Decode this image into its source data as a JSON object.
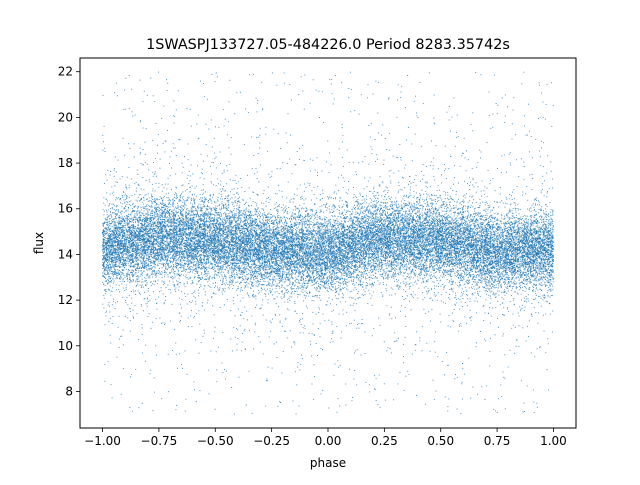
{
  "chart_data": {
    "type": "scatter",
    "title": "1SWASPJ133727.05-484226.0 Period 8283.35742s",
    "xlabel": "phase",
    "ylabel": "flux",
    "xlim": [
      -1.1,
      1.1
    ],
    "ylim": [
      6.4,
      22.6
    ],
    "x_ticks": [
      -1.0,
      -0.75,
      -0.5,
      -0.25,
      0.0,
      0.25,
      0.5,
      0.75,
      1.0
    ],
    "x_tick_labels": [
      "−1.00",
      "−0.75",
      "−0.50",
      "−0.25",
      "0.00",
      "0.25",
      "0.50",
      "0.75",
      "1.00"
    ],
    "y_ticks": [
      8,
      10,
      12,
      14,
      16,
      18,
      20,
      22
    ],
    "y_tick_labels": [
      "8",
      "10",
      "12",
      "14",
      "16",
      "18",
      "20",
      "22"
    ],
    "grid": false,
    "legend": "none",
    "point_color": "#1f77b4",
    "series": [
      {
        "x_range": [
          -1.0,
          1.0
        ],
        "mean_flux_by_phase": {
          "x": [
            -1.0,
            -0.75,
            -0.5,
            -0.25,
            0.0,
            0.25,
            0.5,
            0.75,
            1.0
          ],
          "y": [
            14.2,
            14.8,
            14.6,
            14.2,
            14.1,
            14.7,
            14.6,
            14.1,
            14.2
          ]
        },
        "core_spread": [
          12.8,
          16.2
        ],
        "flux_range": [
          7.0,
          22.0
        ]
      }
    ]
  }
}
